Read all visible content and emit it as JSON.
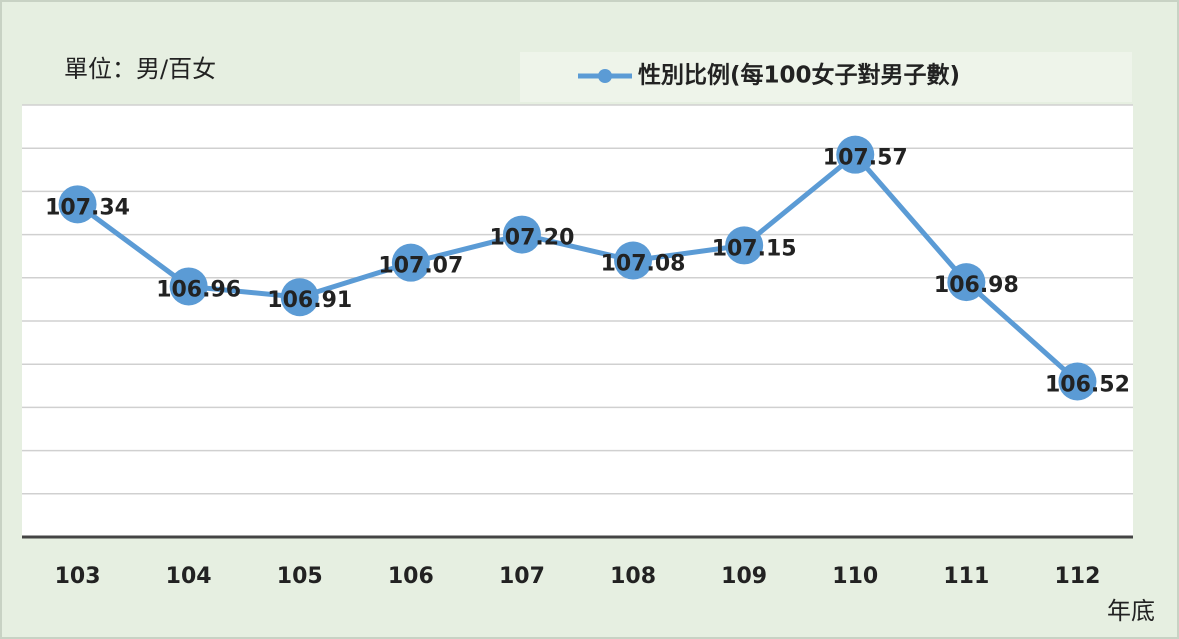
{
  "chart_data": {
    "type": "line",
    "unit_label": "單位：男/百女",
    "x_label": "年底",
    "categories": [
      "103",
      "104",
      "105",
      "106",
      "107",
      "108",
      "109",
      "110",
      "111",
      "112"
    ],
    "series": [
      {
        "name": "性別比例(每100女子對男子數)",
        "color": "#5b9bd5",
        "values": [
          107.34,
          106.96,
          106.91,
          107.07,
          107.2,
          107.08,
          107.15,
          107.57,
          106.98,
          106.52
        ],
        "value_labels": [
          "107.34",
          "106.96",
          "106.91",
          "107.07",
          "107.20",
          "107.08",
          "107.15",
          "107.57",
          "106.98",
          "106.52"
        ]
      }
    ],
    "ylim": [
      105.8,
      107.8
    ],
    "yticks": [
      105.8,
      106,
      106.2,
      106.4,
      106.6,
      106.8,
      107,
      107.2,
      107.4,
      107.6,
      107.8
    ],
    "grid": true
  }
}
